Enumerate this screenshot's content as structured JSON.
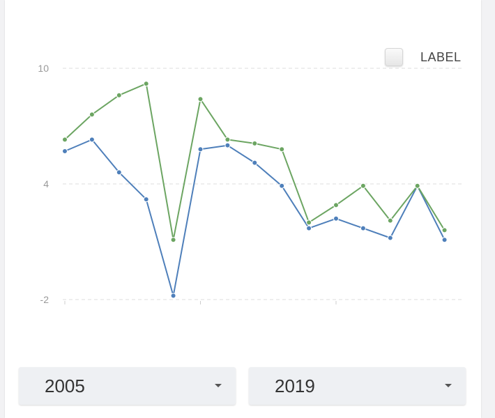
{
  "legend": {
    "label": "LABEL"
  },
  "filters": {
    "start_year": "2005",
    "end_year": "2019"
  },
  "colors": {
    "series_a": "#4e7fba",
    "series_b": "#6ca562",
    "grid": "#dddddd",
    "tick_text": "#999999"
  },
  "chart_data": {
    "type": "line",
    "y_ticks": [
      "10",
      "4",
      "-2"
    ],
    "ylim": [
      -2,
      10
    ],
    "grid": true,
    "legend_position": "top-right",
    "x_count": 15,
    "series": [
      {
        "color": "#4e7fba",
        "values": [
          5.7,
          6.3,
          4.6,
          3.2,
          -1.8,
          5.8,
          6.0,
          5.1,
          3.9,
          1.7,
          2.2,
          1.7,
          1.2,
          3.9,
          1.1
        ]
      },
      {
        "color": "#6ca562",
        "values": [
          6.3,
          7.6,
          8.6,
          9.2,
          1.1,
          8.4,
          6.3,
          6.1,
          5.8,
          2.0,
          2.9,
          3.9,
          2.1,
          3.9,
          1.6
        ]
      }
    ]
  }
}
